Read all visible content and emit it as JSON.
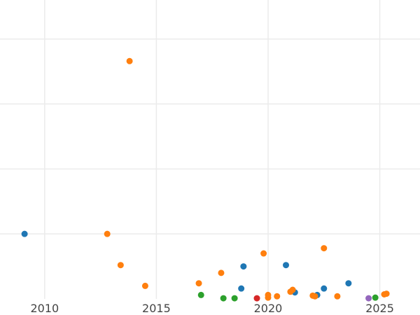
{
  "chart_data": {
    "type": "scatter",
    "title": "",
    "xlabel": "",
    "ylabel": "",
    "xlim": [
      2008.0,
      2026.8
    ],
    "ylim": [
      0,
      23
    ],
    "x_ticks": [
      2010,
      2015,
      2020,
      2025
    ],
    "y_gridlines": [
      5,
      10,
      15,
      20
    ],
    "grid": true,
    "legend": "none",
    "series": [
      {
        "color": "#1f77b4",
        "points": [
          {
            "x": 2009.1,
            "y": 5.0
          },
          {
            "x": 2018.8,
            "y": 0.8
          },
          {
            "x": 2018.9,
            "y": 2.5
          },
          {
            "x": 2020.8,
            "y": 2.6
          },
          {
            "x": 2021.2,
            "y": 0.5
          },
          {
            "x": 2022.2,
            "y": 0.3
          },
          {
            "x": 2022.5,
            "y": 0.8
          },
          {
            "x": 2023.6,
            "y": 1.2
          }
        ]
      },
      {
        "color": "#ff7f0e",
        "points": [
          {
            "x": 2012.8,
            "y": 5.0
          },
          {
            "x": 2013.4,
            "y": 2.6
          },
          {
            "x": 2013.8,
            "y": 18.3
          },
          {
            "x": 2014.5,
            "y": 1.0
          },
          {
            "x": 2016.9,
            "y": 1.2
          },
          {
            "x": 2017.9,
            "y": 2.0
          },
          {
            "x": 2019.8,
            "y": 3.5
          },
          {
            "x": 2020.0,
            "y": 0.1
          },
          {
            "x": 2020.0,
            "y": 0.3
          },
          {
            "x": 2020.4,
            "y": 0.2
          },
          {
            "x": 2021.0,
            "y": 0.55
          },
          {
            "x": 2021.1,
            "y": 0.7
          },
          {
            "x": 2022.0,
            "y": 0.25
          },
          {
            "x": 2022.1,
            "y": 0.2
          },
          {
            "x": 2022.5,
            "y": 3.9
          },
          {
            "x": 2023.1,
            "y": 0.2
          },
          {
            "x": 2025.2,
            "y": 0.35
          },
          {
            "x": 2025.3,
            "y": 0.4
          }
        ]
      },
      {
        "color": "#2ca02c",
        "points": [
          {
            "x": 2017.0,
            "y": 0.3
          },
          {
            "x": 2018.0,
            "y": 0.05
          },
          {
            "x": 2018.5,
            "y": 0.05
          },
          {
            "x": 2024.8,
            "y": 0.1
          }
        ]
      },
      {
        "color": "#d62728",
        "points": [
          {
            "x": 2019.5,
            "y": 0.05
          }
        ]
      },
      {
        "color": "#9467bd",
        "points": [
          {
            "x": 2024.5,
            "y": 0.05
          }
        ]
      }
    ]
  }
}
